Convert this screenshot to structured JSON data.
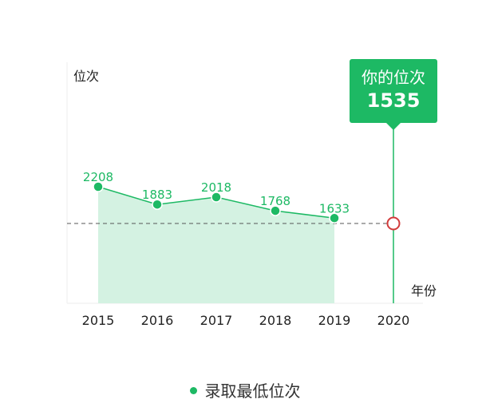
{
  "chart_data": {
    "type": "area",
    "xlabel": "年份",
    "ylabel": "位次",
    "categories": [
      "2015",
      "2016",
      "2017",
      "2018",
      "2019",
      "2020"
    ],
    "series": [
      {
        "name": "录取最低位次",
        "x": [
          "2015",
          "2016",
          "2017",
          "2018",
          "2019"
        ],
        "values": [
          2208,
          1883,
          2018,
          1768,
          1633
        ]
      }
    ],
    "highlight": {
      "x": "2020",
      "value": 1535,
      "label": "你的位次",
      "value_text": "1535"
    },
    "grid": false,
    "legend_position": "bottom-center",
    "colors": {
      "series": "#1db964",
      "area_fill": "#d4f2e2",
      "marker": "#d23b3b",
      "reference_line": "#555555"
    }
  }
}
